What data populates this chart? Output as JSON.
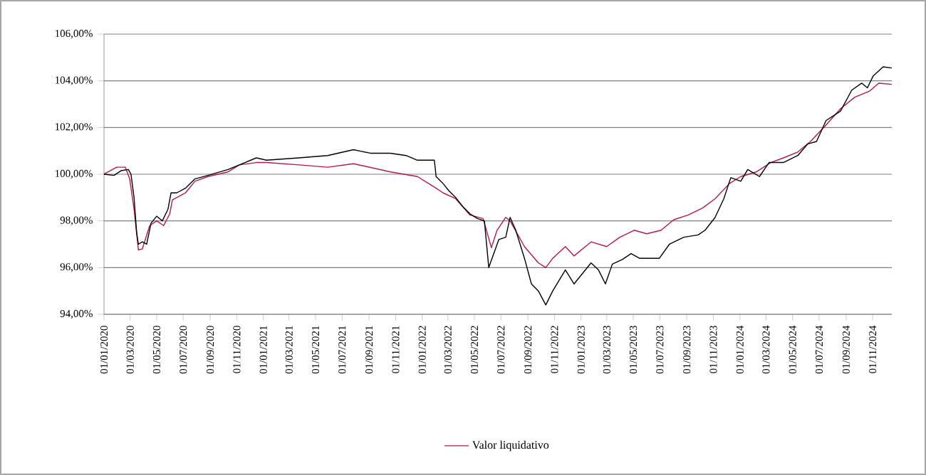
{
  "chart_data": {
    "type": "line",
    "xlim": [
      "2020-01-01",
      "2024-12-15"
    ],
    "ylim": [
      94,
      106
    ],
    "yticks": [
      {
        "value": 94,
        "label": "94,00%"
      },
      {
        "value": 96,
        "label": "96,00%"
      },
      {
        "value": 98,
        "label": "98,00%"
      },
      {
        "value": 100,
        "label": "100,00%"
      },
      {
        "value": 102,
        "label": "102,00%"
      },
      {
        "value": 104,
        "label": "104,00%"
      },
      {
        "value": 106,
        "label": "106,00%"
      }
    ],
    "xticks": [
      {
        "value": "2020-01-01",
        "label": "01/01/2020"
      },
      {
        "value": "2020-03-01",
        "label": "01/03/2020"
      },
      {
        "value": "2020-05-01",
        "label": "01/05/2020"
      },
      {
        "value": "2020-07-01",
        "label": "01/07/2020"
      },
      {
        "value": "2020-09-01",
        "label": "01/09/2020"
      },
      {
        "value": "2020-11-01",
        "label": "01/11/2020"
      },
      {
        "value": "2021-01-01",
        "label": "01/01/2021"
      },
      {
        "value": "2021-03-01",
        "label": "01/03/2021"
      },
      {
        "value": "2021-05-01",
        "label": "01/05/2021"
      },
      {
        "value": "2021-07-01",
        "label": "01/07/2021"
      },
      {
        "value": "2021-09-01",
        "label": "01/09/2021"
      },
      {
        "value": "2021-11-01",
        "label": "01/11/2021"
      },
      {
        "value": "2022-01-01",
        "label": "01/01/2022"
      },
      {
        "value": "2022-03-01",
        "label": "01/03/2022"
      },
      {
        "value": "2022-05-01",
        "label": "01/05/2022"
      },
      {
        "value": "2022-07-01",
        "label": "01/07/2022"
      },
      {
        "value": "2022-09-01",
        "label": "01/09/2022"
      },
      {
        "value": "2022-11-01",
        "label": "01/11/2022"
      },
      {
        "value": "2023-01-01",
        "label": "01/01/2023"
      },
      {
        "value": "2023-03-01",
        "label": "01/03/2023"
      },
      {
        "value": "2023-05-01",
        "label": "01/05/2023"
      },
      {
        "value": "2023-07-01",
        "label": "01/07/2023"
      },
      {
        "value": "2023-09-01",
        "label": "01/09/2023"
      },
      {
        "value": "2023-11-01",
        "label": "01/11/2023"
      },
      {
        "value": "2024-01-01",
        "label": "01/01/2024"
      },
      {
        "value": "2024-03-01",
        "label": "01/03/2024"
      },
      {
        "value": "2024-05-01",
        "label": "01/05/2024"
      },
      {
        "value": "2024-07-01",
        "label": "01/07/2024"
      },
      {
        "value": "2024-09-01",
        "label": "01/09/2024"
      },
      {
        "value": "2024-11-01",
        "label": "01/11/2024"
      }
    ],
    "grid": "y",
    "legend": "bottom",
    "marker": "none",
    "line_style": "solid",
    "series": [
      {
        "name": "Valor liquidativo",
        "color": "#b5174a",
        "x": [
          "2020-01-01",
          "2020-01-30",
          "2020-02-19",
          "2020-02-29",
          "2020-03-10",
          "2020-03-20",
          "2020-03-29",
          "2020-04-15",
          "2020-05-01",
          "2020-05-17",
          "2020-05-31",
          "2020-06-06",
          "2020-07-06",
          "2020-07-28",
          "2020-08-27",
          "2020-10-12",
          "2020-11-07",
          "2020-12-16",
          "2021-01-08",
          "2021-03-24",
          "2021-05-29",
          "2021-07-27",
          "2021-10-20",
          "2021-12-21",
          "2022-02-02",
          "2022-02-18",
          "2022-03-19",
          "2022-04-21",
          "2022-05-21",
          "2022-06-09",
          "2022-06-22",
          "2022-07-12",
          "2022-07-22",
          "2022-08-24",
          "2022-09-25",
          "2022-10-12",
          "2022-10-28",
          "2022-11-26",
          "2022-12-16",
          "2023-01-24",
          "2023-03-01",
          "2023-03-31",
          "2023-05-03",
          "2023-06-01",
          "2023-07-04",
          "2023-08-02",
          "2023-09-04",
          "2023-10-07",
          "2023-11-05",
          "2023-12-08",
          "2024-01-03",
          "2024-02-08",
          "2024-03-12",
          "2024-04-10",
          "2024-05-13",
          "2024-06-11",
          "2024-07-14",
          "2024-08-19",
          "2024-09-21",
          "2024-10-24",
          "2024-11-15",
          "2024-12-15"
        ],
        "values": [
          100.0,
          100.3,
          100.3,
          99.8,
          98.5,
          96.75,
          96.8,
          97.8,
          98.0,
          97.8,
          98.3,
          98.9,
          99.2,
          99.7,
          99.9,
          100.1,
          100.4,
          100.5,
          100.5,
          100.4,
          100.3,
          100.45,
          100.1,
          99.9,
          99.4,
          99.2,
          98.95,
          98.25,
          98.1,
          96.85,
          97.6,
          98.15,
          98.0,
          96.9,
          96.2,
          96.0,
          96.4,
          96.9,
          96.5,
          97.1,
          96.9,
          97.3,
          97.6,
          97.45,
          97.6,
          98.05,
          98.25,
          98.55,
          98.95,
          99.6,
          99.9,
          100.1,
          100.5,
          100.7,
          100.95,
          101.4,
          102.05,
          102.8,
          103.3,
          103.55,
          103.9,
          103.85
        ]
      },
      {
        "color": "#000000",
        "x": [
          "2020-01-01",
          "2020-01-24",
          "2020-02-09",
          "2020-02-26",
          "2020-03-03",
          "2020-03-10",
          "2020-03-16",
          "2020-03-20",
          "2020-03-29",
          "2020-04-08",
          "2020-04-18",
          "2020-05-01",
          "2020-05-14",
          "2020-05-27",
          "2020-06-03",
          "2020-06-16",
          "2020-07-06",
          "2020-07-28",
          "2020-08-27",
          "2020-10-12",
          "2020-11-07",
          "2020-12-16",
          "2021-01-08",
          "2021-03-24",
          "2021-05-29",
          "2021-07-27",
          "2021-09-04",
          "2021-10-20",
          "2021-11-25",
          "2021-12-21",
          "2022-01-29",
          "2022-02-02",
          "2022-02-18",
          "2022-03-03",
          "2022-03-19",
          "2022-04-05",
          "2022-04-21",
          "2022-05-08",
          "2022-05-24",
          "2022-06-03",
          "2022-06-26",
          "2022-07-12",
          "2022-07-22",
          "2022-08-04",
          "2022-08-24",
          "2022-09-09",
          "2022-09-25",
          "2022-10-12",
          "2022-10-28",
          "2022-11-26",
          "2022-12-16",
          "2023-01-24",
          "2023-02-10",
          "2023-02-26",
          "2023-03-14",
          "2023-04-06",
          "2023-04-26",
          "2023-05-15",
          "2023-06-30",
          "2023-07-23",
          "2023-08-25",
          "2023-09-27",
          "2023-10-13",
          "2023-11-05",
          "2023-11-25",
          "2023-12-11",
          "2024-01-03",
          "2024-01-19",
          "2024-02-15",
          "2024-03-08",
          "2024-04-10",
          "2024-05-13",
          "2024-06-05",
          "2024-06-25",
          "2024-07-17",
          "2024-08-19",
          "2024-09-14",
          "2024-10-07",
          "2024-10-20",
          "2024-11-02",
          "2024-11-25",
          "2024-12-15"
        ],
        "values": [
          100.0,
          99.95,
          100.15,
          100.2,
          100.0,
          99.0,
          97.5,
          97.0,
          97.1,
          97.0,
          97.9,
          98.2,
          98.0,
          98.5,
          99.2,
          99.2,
          99.4,
          99.8,
          99.95,
          100.2,
          100.4,
          100.7,
          100.6,
          100.7,
          100.8,
          101.05,
          100.9,
          100.9,
          100.8,
          100.6,
          100.6,
          99.9,
          99.6,
          99.3,
          99.0,
          98.6,
          98.3,
          98.1,
          98.0,
          96.0,
          97.2,
          97.3,
          98.15,
          97.6,
          96.4,
          95.3,
          95.0,
          94.4,
          95.0,
          95.9,
          95.3,
          96.2,
          95.9,
          95.3,
          96.15,
          96.35,
          96.6,
          96.4,
          96.4,
          97.0,
          97.3,
          97.4,
          97.6,
          98.15,
          98.95,
          99.85,
          99.7,
          100.2,
          99.9,
          100.5,
          100.5,
          100.8,
          101.3,
          101.4,
          102.3,
          102.7,
          103.6,
          103.9,
          103.7,
          104.2,
          104.6,
          104.55
        ]
      }
    ]
  }
}
